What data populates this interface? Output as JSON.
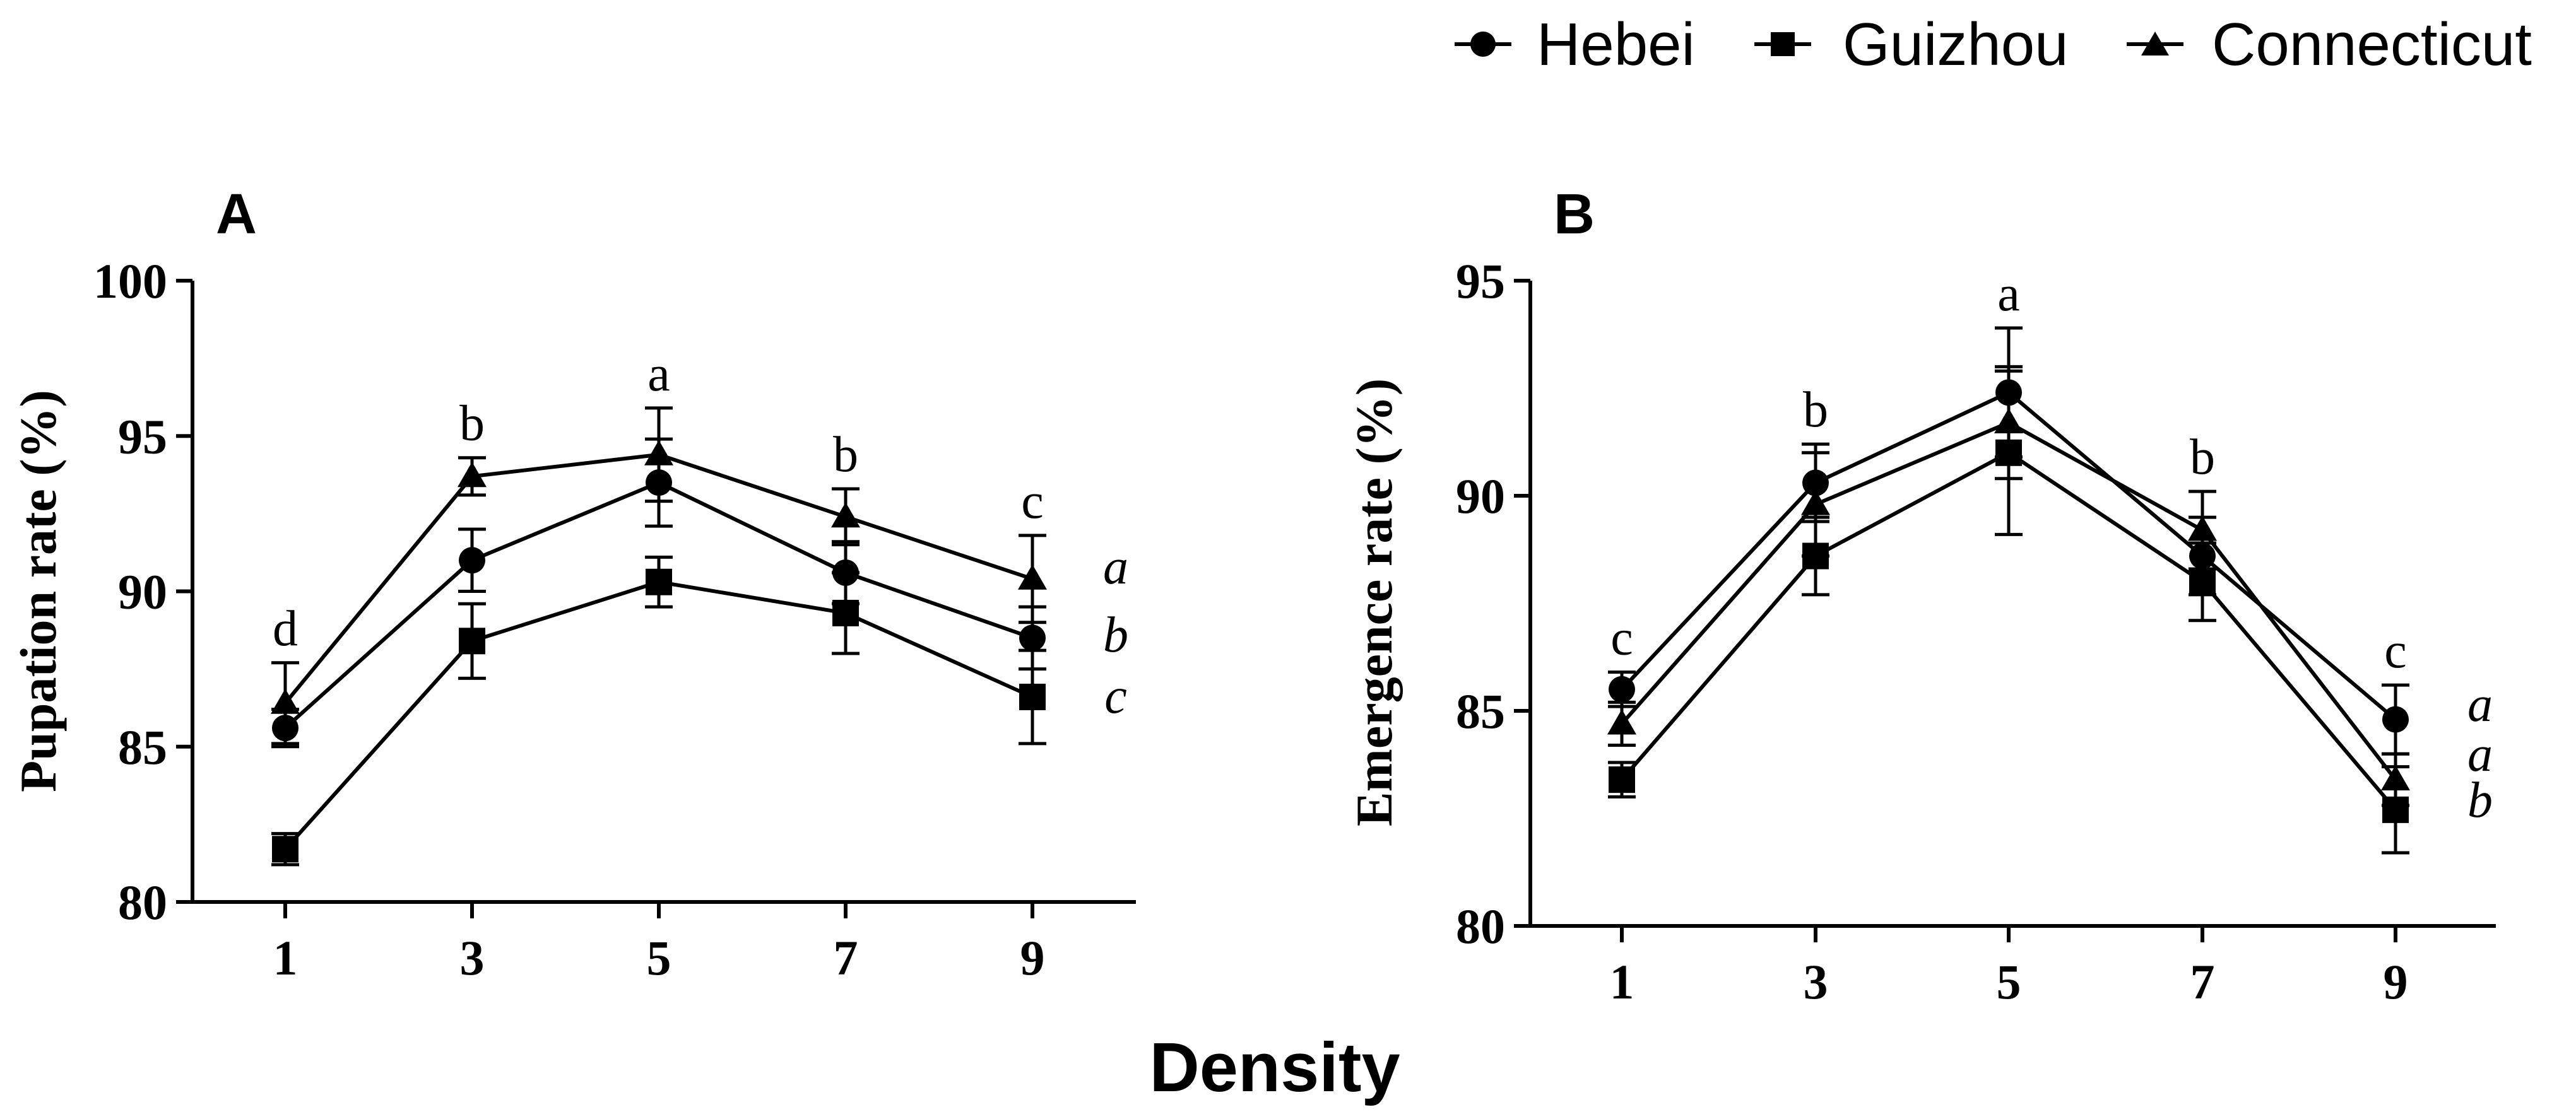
{
  "chart_data": [
    {
      "type": "line",
      "panel": "A",
      "title": "",
      "xlabel": "Density",
      "ylabel": "Pupation rate (%)",
      "x": [
        1,
        3,
        5,
        7,
        9
      ],
      "x_tick_labels": [
        "1",
        "3",
        "5",
        "7",
        "9"
      ],
      "ylim": [
        80,
        100
      ],
      "y_ticks": [
        80,
        85,
        90,
        95,
        100
      ],
      "y_tick_labels": [
        "80",
        "85",
        "90",
        "95",
        "100"
      ],
      "series": [
        {
          "name": "Hebei",
          "marker": "circle",
          "values": [
            85.6,
            91.0,
            93.5,
            90.6,
            88.5
          ],
          "errors": [
            0.6,
            1.0,
            1.4,
            1.0,
            1.0
          ]
        },
        {
          "name": "Guizhou",
          "marker": "square",
          "values": [
            81.7,
            88.4,
            90.3,
            89.3,
            86.6
          ],
          "errors": [
            0.5,
            1.2,
            0.8,
            1.3,
            1.5
          ]
        },
        {
          "name": "Connecticut",
          "marker": "triangle",
          "values": [
            86.4,
            93.7,
            94.4,
            92.4,
            90.4
          ],
          "errors": [
            1.3,
            0.6,
            1.5,
            0.9,
            1.4
          ]
        }
      ],
      "significance_letters": [
        "d",
        "b",
        "a",
        "b",
        "c"
      ],
      "series_letters": [
        "a",
        "b",
        "c"
      ],
      "grid": false,
      "legend": "top-right"
    },
    {
      "type": "line",
      "panel": "B",
      "title": "",
      "xlabel": "Density",
      "ylabel": "Emergence rate (%)",
      "x": [
        1,
        3,
        5,
        7,
        9
      ],
      "x_tick_labels": [
        "1",
        "3",
        "5",
        "7",
        "9"
      ],
      "ylim": [
        80,
        95
      ],
      "y_ticks": [
        80,
        85,
        90,
        95
      ],
      "y_tick_labels": [
        "80",
        "85",
        "90",
        "95"
      ],
      "series": [
        {
          "name": "Hebei",
          "marker": "circle",
          "values": [
            85.5,
            90.3,
            92.4,
            88.6,
            84.8
          ],
          "errors": [
            0.4,
            0.9,
            1.5,
            0.9,
            0.8
          ]
        },
        {
          "name": "Guizhou",
          "marker": "square",
          "values": [
            83.4,
            88.6,
            91.0,
            88.0,
            82.7
          ],
          "errors": [
            0.4,
            0.9,
            1.9,
            0.9,
            1.0
          ]
        },
        {
          "name": "Connecticut",
          "marker": "triangle",
          "values": [
            84.7,
            89.8,
            91.7,
            89.2,
            83.4
          ],
          "errors": [
            0.5,
            1.2,
            1.3,
            0.9,
            0.6
          ]
        }
      ],
      "significance_letters": [
        "c",
        "b",
        "a",
        "b",
        "c"
      ],
      "series_letters": [
        "a",
        "a",
        "b"
      ],
      "grid": false,
      "legend": "top-right"
    }
  ],
  "legend": {
    "entries": [
      "Hebei",
      "Guizhou",
      "Connecticut"
    ]
  },
  "shared_xlabel": "Density",
  "panel_labels": [
    "A",
    "B"
  ]
}
